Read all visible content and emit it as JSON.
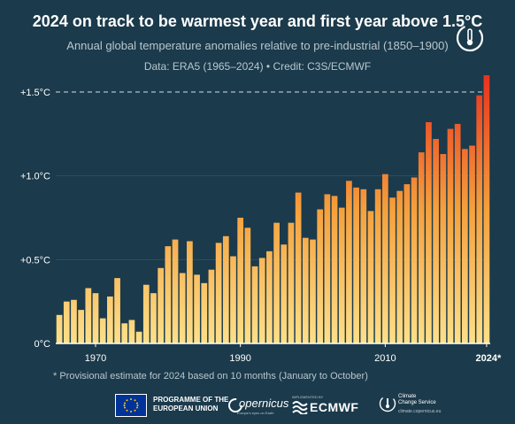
{
  "header": {
    "title": "2024 on track to be warmest year and first year above 1.5°C",
    "subtitle": "Annual global temperature anomalies relative to pre-industrial (1850–1900)",
    "source": "Data: ERA5 (1965–2024) • Credit: C3S/ECMWF"
  },
  "footnote": "* Provisional estimate for 2024 based on 10 months (January to October)",
  "footer": {
    "eu_line1": "PROGRAMME OF THE",
    "eu_line2": "EUROPEAN UNION",
    "copernicus_word": "opernicus",
    "copernicus_tag": "Europe's eyes on Earth",
    "ecmwf_pre": "IMPLEMENTED BY",
    "ecmwf_word": "ECMWF",
    "c3s_line1": "Climate",
    "c3s_line2": "Change Service",
    "c3s_url": "climate.copernicus.eu"
  },
  "colors": {
    "background": "#1b3a4b",
    "bar_low": "#fde08a",
    "bar_mid": "#f5a03c",
    "bar_high": "#e8321e",
    "threshold_line": "#9fb3bd",
    "text_muted": "#b8c7cf"
  },
  "chart_data": {
    "type": "bar",
    "x": [
      1965,
      1966,
      1967,
      1968,
      1969,
      1970,
      1971,
      1972,
      1973,
      1974,
      1975,
      1976,
      1977,
      1978,
      1979,
      1980,
      1981,
      1982,
      1983,
      1984,
      1985,
      1986,
      1987,
      1988,
      1989,
      1990,
      1991,
      1992,
      1993,
      1994,
      1995,
      1996,
      1997,
      1998,
      1999,
      2000,
      2001,
      2002,
      2003,
      2004,
      2005,
      2006,
      2007,
      2008,
      2009,
      2010,
      2011,
      2012,
      2013,
      2014,
      2015,
      2016,
      2017,
      2018,
      2019,
      2020,
      2021,
      2022,
      2023,
      2024
    ],
    "values": [
      0.17,
      0.25,
      0.26,
      0.2,
      0.33,
      0.3,
      0.15,
      0.28,
      0.39,
      0.12,
      0.14,
      0.07,
      0.35,
      0.3,
      0.45,
      0.58,
      0.62,
      0.42,
      0.61,
      0.41,
      0.36,
      0.44,
      0.6,
      0.64,
      0.52,
      0.75,
      0.69,
      0.46,
      0.51,
      0.55,
      0.72,
      0.59,
      0.72,
      0.9,
      0.63,
      0.62,
      0.8,
      0.89,
      0.88,
      0.81,
      0.97,
      0.93,
      0.92,
      0.79,
      0.92,
      1.01,
      0.87,
      0.91,
      0.95,
      0.99,
      1.14,
      1.32,
      1.22,
      1.13,
      1.28,
      1.31,
      1.16,
      1.18,
      1.48,
      1.6
    ],
    "xticks": [
      "1970",
      "1990",
      "2010",
      "2024*"
    ],
    "xtick_years": [
      1970,
      1990,
      2010,
      2024
    ],
    "yticks": [
      "0°C",
      "+0.5°C",
      "+1.0°C",
      "+1.5°C"
    ],
    "ytick_values": [
      0,
      0.5,
      1.0,
      1.5
    ],
    "ylim": [
      0,
      1.6
    ],
    "threshold": 1.5,
    "grid": true,
    "title": "2024 on track to be warmest year and first year above 1.5°C"
  }
}
